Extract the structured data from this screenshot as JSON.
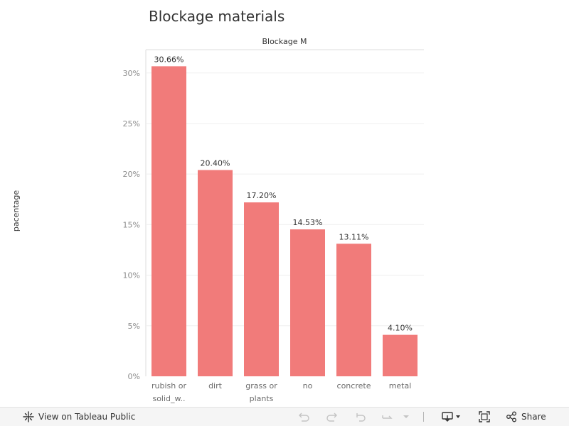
{
  "chart_data": {
    "type": "bar",
    "title": "Blockage materials",
    "header": "Blockage M",
    "xlabel": "",
    "ylabel": "pacentage",
    "categories": [
      [
        "rubish or",
        "solid_w.."
      ],
      [
        "dirt"
      ],
      [
        "grass or",
        "plants"
      ],
      [
        "no"
      ],
      [
        "concrete"
      ],
      [
        "metal"
      ]
    ],
    "values": [
      30.66,
      20.4,
      17.2,
      14.53,
      13.11,
      4.1
    ],
    "data_labels": [
      "30.66%",
      "20.40%",
      "17.20%",
      "14.53%",
      "13.11%",
      "4.10%"
    ],
    "ylim": [
      0,
      32.3
    ],
    "yticks": [
      0,
      5,
      10,
      15,
      20,
      25,
      30
    ],
    "ytick_labels": [
      "0%",
      "5%",
      "10%",
      "15%",
      "20%",
      "25%",
      "30%"
    ],
    "grid": true,
    "bar_color": "#f17b7a"
  },
  "toolbar": {
    "view_label": "View on Tableau Public",
    "share_label": "Share"
  },
  "icons": {
    "tableau": "tableau-logo-icon",
    "undo": "undo-icon",
    "redo": "redo-icon",
    "revert": "revert-icon",
    "refresh": "refresh-icon",
    "caret": "chevron-down-icon",
    "download": "download-icon",
    "fullscreen": "fullscreen-icon",
    "share": "share-icon"
  }
}
